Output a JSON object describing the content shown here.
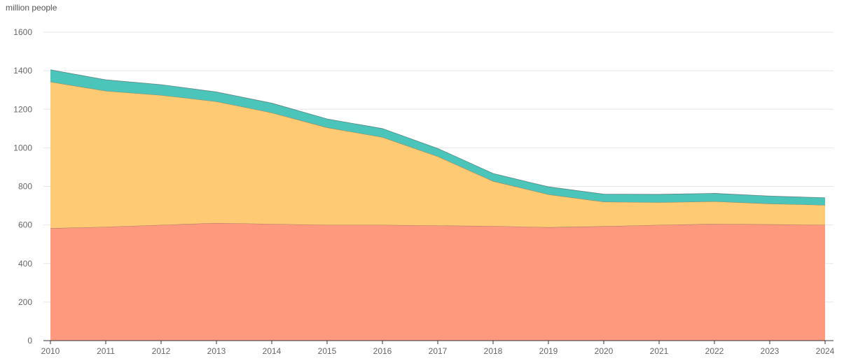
{
  "chart_data": {
    "type": "area",
    "stacked": true,
    "ylabel": "million people",
    "ylim": [
      0,
      1600
    ],
    "yticks": [
      0,
      200,
      400,
      600,
      800,
      1000,
      1200,
      1400,
      1600
    ],
    "x": [
      "2010",
      "2011",
      "2012",
      "2013",
      "2014",
      "2015",
      "2016",
      "2017",
      "2018",
      "2019",
      "2020",
      "2021",
      "2022",
      "2023",
      "2024"
    ],
    "grid": true,
    "series": [
      {
        "color": "#FF967A",
        "values": [
          583,
          590,
          600,
          610,
          605,
          600,
          600,
          597,
          594,
          588,
          593,
          600,
          605,
          603,
          600
        ]
      },
      {
        "color": "#FEC86F",
        "values": [
          759,
          705,
          673,
          630,
          577,
          505,
          455,
          358,
          233,
          170,
          127,
          117,
          117,
          107,
          103
        ]
      },
      {
        "color": "#45C3B8",
        "values": [
          63,
          58,
          55,
          50,
          50,
          45,
          45,
          42,
          40,
          40,
          40,
          42,
          42,
          40,
          38
        ]
      }
    ]
  }
}
